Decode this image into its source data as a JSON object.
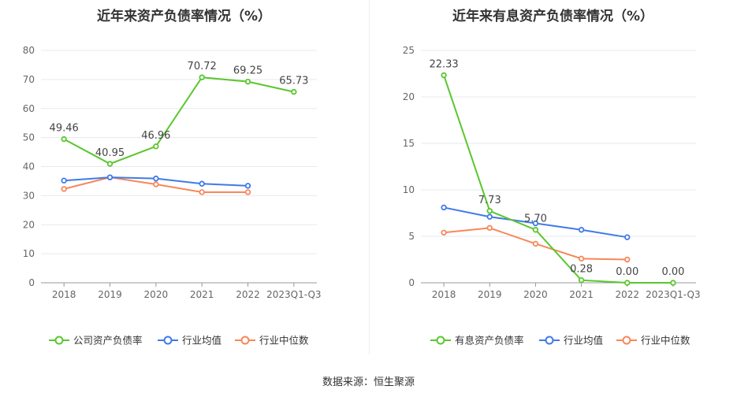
{
  "chart_data": [
    {
      "type": "line",
      "title": "近年来资产负债率情况（%）",
      "categories": [
        "2018",
        "2019",
        "2020",
        "2021",
        "2022",
        "2023Q1-Q3"
      ],
      "ylim": [
        0,
        80
      ],
      "yticks": [
        0,
        10,
        20,
        30,
        40,
        50,
        60,
        70,
        80
      ],
      "grid": true,
      "legend": "bottom",
      "series": [
        {
          "name": "公司资产负债率",
          "color": "#5ac72c",
          "values": [
            49.46,
            40.95,
            46.96,
            70.72,
            69.25,
            65.73
          ],
          "labels": [
            "49.46",
            "40.95",
            "46.96",
            "70.72",
            "69.25",
            "65.73"
          ]
        },
        {
          "name": "行业均值",
          "color": "#3f7ae8",
          "values": [
            35.2,
            36.3,
            35.9,
            34.1,
            33.4,
            null
          ]
        },
        {
          "name": "行业中位数",
          "color": "#f7875a",
          "values": [
            32.3,
            36.3,
            33.9,
            31.2,
            31.2,
            null
          ]
        }
      ]
    },
    {
      "type": "line",
      "title": "近年来有息资产负债率情况（%）",
      "categories": [
        "2018",
        "2019",
        "2020",
        "2021",
        "2022",
        "2023Q1-Q3"
      ],
      "ylim": [
        0,
        25
      ],
      "yticks": [
        0,
        5,
        10,
        15,
        20,
        25
      ],
      "grid": true,
      "legend": "bottom",
      "series": [
        {
          "name": "有息资产负债率",
          "color": "#5ac72c",
          "values": [
            22.33,
            7.73,
            5.7,
            0.28,
            0.0,
            0.0
          ],
          "labels": [
            "22.33",
            "7.73",
            "5.70",
            "0.28",
            "0.00",
            "0.00"
          ]
        },
        {
          "name": "行业均值",
          "color": "#3f7ae8",
          "values": [
            8.1,
            7.1,
            6.4,
            5.7,
            4.9,
            null
          ]
        },
        {
          "name": "行业中位数",
          "color": "#f7875a",
          "values": [
            5.4,
            5.9,
            4.2,
            2.6,
            2.5,
            null
          ]
        }
      ]
    }
  ],
  "source": "数据来源：恒生聚源"
}
